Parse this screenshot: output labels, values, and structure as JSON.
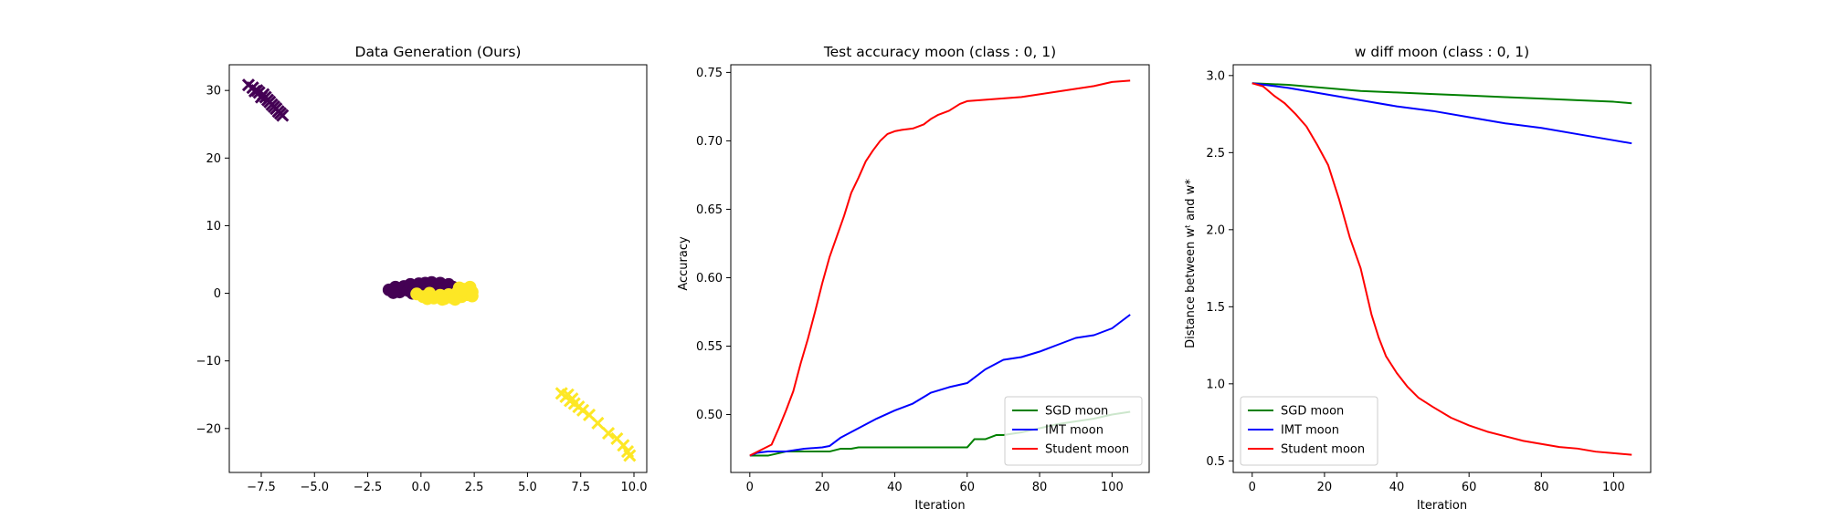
{
  "figure": {
    "background": "#ffffff"
  },
  "chart_data": [
    {
      "type": "scatter",
      "title": "Data Generation (Ours)",
      "xlabel": "",
      "ylabel": "",
      "xlim": [
        -9,
        10.6
      ],
      "ylim": [
        -26.5,
        33.8
      ],
      "xticks": [
        -7.5,
        -5.0,
        -2.5,
        0.0,
        2.5,
        5.0,
        7.5,
        10.0
      ],
      "xtick_labels": [
        "−7.5",
        "−5.0",
        "−2.5",
        "0.0",
        "2.5",
        "5.0",
        "7.5",
        "10.0"
      ],
      "yticks": [
        -20,
        -10,
        0,
        10,
        20,
        30
      ],
      "ytick_labels": [
        "−20",
        "−10",
        "0",
        "10",
        "20",
        "30"
      ],
      "grid": false,
      "series": [
        {
          "class": 0,
          "color": "#440154",
          "marker": "dot",
          "points": [
            [
              -1.5,
              0.5
            ],
            [
              -1.2,
              0.9
            ],
            [
              -1.0,
              0.2
            ],
            [
              -0.8,
              1.0
            ],
            [
              -0.6,
              0.4
            ],
            [
              -0.5,
              1.3
            ],
            [
              -0.3,
              0.7
            ],
            [
              -0.1,
              1.4
            ],
            [
              0.0,
              0.3
            ],
            [
              0.2,
              1.5
            ],
            [
              0.4,
              0.9
            ],
            [
              0.5,
              1.6
            ],
            [
              0.7,
              1.1
            ],
            [
              0.9,
              1.5
            ],
            [
              1.1,
              0.8
            ],
            [
              1.3,
              1.3
            ],
            [
              1.5,
              0.9
            ],
            [
              -1.3,
              0.1
            ],
            [
              -0.4,
              0.0
            ],
            [
              0.3,
              0.6
            ],
            [
              0.8,
              0.6
            ],
            [
              1.4,
              0.6
            ]
          ]
        },
        {
          "class": 0,
          "color": "#440154",
          "marker": "x",
          "points": [
            [
              -8.1,
              30.8
            ],
            [
              -7.9,
              30.4
            ],
            [
              -7.7,
              30.0
            ],
            [
              -7.6,
              29.7
            ],
            [
              -7.4,
              29.4
            ],
            [
              -7.3,
              29.0
            ],
            [
              -7.2,
              28.6
            ],
            [
              -7.1,
              28.3
            ],
            [
              -7.0,
              27.9
            ],
            [
              -6.9,
              27.6
            ],
            [
              -6.8,
              27.3
            ],
            [
              -6.7,
              26.9
            ],
            [
              -6.6,
              26.6
            ],
            [
              -6.5,
              26.3
            ],
            [
              -7.5,
              29.0
            ],
            [
              -7.8,
              29.9
            ]
          ]
        },
        {
          "class": 1,
          "color": "#fde725",
          "marker": "dot",
          "points": [
            [
              -0.2,
              -0.1
            ],
            [
              0.1,
              -0.5
            ],
            [
              0.4,
              0.0
            ],
            [
              0.6,
              -0.7
            ],
            [
              0.9,
              -0.3
            ],
            [
              1.1,
              -0.8
            ],
            [
              1.3,
              -0.2
            ],
            [
              1.5,
              -0.7
            ],
            [
              1.7,
              0.1
            ],
            [
              1.9,
              -0.5
            ],
            [
              2.0,
              0.6
            ],
            [
              2.2,
              -0.2
            ],
            [
              2.3,
              0.9
            ],
            [
              2.4,
              0.2
            ],
            [
              1.8,
              0.8
            ],
            [
              2.1,
              0.4
            ],
            [
              0.3,
              -0.8
            ],
            [
              1.0,
              -0.9
            ],
            [
              1.6,
              -0.9
            ],
            [
              2.4,
              -0.4
            ]
          ]
        },
        {
          "class": 1,
          "color": "#fde725",
          "marker": "x",
          "points": [
            [
              6.6,
              -14.8
            ],
            [
              6.8,
              -15.3
            ],
            [
              6.9,
              -15.0
            ],
            [
              7.0,
              -15.9
            ],
            [
              7.2,
              -16.3
            ],
            [
              7.4,
              -16.8
            ],
            [
              7.6,
              -17.3
            ],
            [
              7.9,
              -18.0
            ],
            [
              8.3,
              -19.2
            ],
            [
              8.8,
              -20.7
            ],
            [
              9.2,
              -21.5
            ],
            [
              9.5,
              -22.5
            ],
            [
              9.7,
              -23.4
            ],
            [
              9.8,
              -24.0
            ],
            [
              7.1,
              -15.6
            ]
          ]
        }
      ]
    },
    {
      "type": "line",
      "title": "Test accuracy moon (class : 0, 1)",
      "xlabel": "Iteration",
      "ylabel": "Accuracy",
      "xlim": [
        -5.25,
        110.25
      ],
      "ylim": [
        0.4577,
        0.7556
      ],
      "xticks": [
        0,
        20,
        40,
        60,
        80,
        100
      ],
      "xtick_labels": [
        "0",
        "20",
        "40",
        "60",
        "80",
        "100"
      ],
      "yticks": [
        0.5,
        0.55,
        0.6,
        0.65,
        0.7,
        0.75
      ],
      "ytick_labels": [
        "0.50",
        "0.55",
        "0.60",
        "0.65",
        "0.70",
        "0.75"
      ],
      "grid": false,
      "legend_position": "lower-right",
      "series": [
        {
          "name": "SGD moon",
          "color": "#008000",
          "x": [
            0,
            5,
            10,
            15,
            20,
            22,
            25,
            28,
            30,
            35,
            40,
            45,
            50,
            55,
            60,
            62,
            65,
            68,
            70,
            75,
            80,
            85,
            90,
            95,
            100,
            105
          ],
          "y": [
            0.47,
            0.47,
            0.473,
            0.473,
            0.473,
            0.473,
            0.475,
            0.475,
            0.476,
            0.476,
            0.476,
            0.476,
            0.476,
            0.476,
            0.476,
            0.482,
            0.482,
            0.485,
            0.485,
            0.487,
            0.49,
            0.493,
            0.495,
            0.497,
            0.5,
            0.502
          ]
        },
        {
          "name": "IMT moon",
          "color": "#0000ff",
          "x": [
            0,
            2,
            5,
            10,
            15,
            20,
            22,
            25,
            30,
            35,
            40,
            45,
            50,
            55,
            60,
            65,
            70,
            75,
            80,
            85,
            90,
            95,
            100,
            105
          ],
          "y": [
            0.47,
            0.472,
            0.473,
            0.473,
            0.475,
            0.476,
            0.477,
            0.483,
            0.49,
            0.497,
            0.503,
            0.508,
            0.516,
            0.52,
            0.523,
            0.533,
            0.54,
            0.542,
            0.546,
            0.551,
            0.556,
            0.558,
            0.563,
            0.573
          ]
        },
        {
          "name": "Student moon",
          "color": "#ff0000",
          "x": [
            0,
            3,
            6,
            8,
            10,
            12,
            14,
            16,
            18,
            20,
            22,
            24,
            26,
            28,
            30,
            32,
            34,
            36,
            38,
            40,
            42,
            45,
            48,
            50,
            52,
            55,
            58,
            60,
            65,
            70,
            75,
            80,
            85,
            90,
            95,
            100,
            105
          ],
          "y": [
            0.47,
            0.474,
            0.478,
            0.49,
            0.503,
            0.517,
            0.537,
            0.555,
            0.575,
            0.596,
            0.615,
            0.63,
            0.645,
            0.662,
            0.673,
            0.685,
            0.693,
            0.7,
            0.705,
            0.707,
            0.708,
            0.709,
            0.712,
            0.716,
            0.719,
            0.722,
            0.727,
            0.729,
            0.73,
            0.731,
            0.732,
            0.734,
            0.736,
            0.738,
            0.74,
            0.743,
            0.744
          ]
        }
      ]
    },
    {
      "type": "line",
      "title": "w diff moon (class : 0, 1)",
      "xlabel": "Iteration",
      "ylabel": "Distance between wᵗ and w*",
      "xlim": [
        -5.25,
        110.25
      ],
      "ylim": [
        0.425,
        3.07
      ],
      "xticks": [
        0,
        20,
        40,
        60,
        80,
        100
      ],
      "xtick_labels": [
        "0",
        "20",
        "40",
        "60",
        "80",
        "100"
      ],
      "yticks": [
        0.5,
        1.0,
        1.5,
        2.0,
        2.5,
        3.0
      ],
      "ytick_labels": [
        "0.5",
        "1.0",
        "1.5",
        "2.0",
        "2.5",
        "3.0"
      ],
      "grid": false,
      "legend_position": "lower-left",
      "series": [
        {
          "name": "SGD moon",
          "color": "#008000",
          "x": [
            0,
            10,
            20,
            30,
            40,
            50,
            60,
            70,
            80,
            90,
            100,
            105
          ],
          "y": [
            2.95,
            2.94,
            2.92,
            2.9,
            2.89,
            2.88,
            2.87,
            2.86,
            2.85,
            2.84,
            2.83,
            2.82
          ]
        },
        {
          "name": "IMT moon",
          "color": "#0000ff",
          "x": [
            0,
            10,
            20,
            30,
            40,
            50,
            60,
            70,
            80,
            90,
            100,
            105
          ],
          "y": [
            2.95,
            2.92,
            2.88,
            2.84,
            2.8,
            2.77,
            2.73,
            2.69,
            2.66,
            2.62,
            2.58,
            2.56
          ]
        },
        {
          "name": "Student moon",
          "color": "#ff0000",
          "x": [
            0,
            3,
            6,
            9,
            12,
            15,
            18,
            21,
            24,
            27,
            30,
            33,
            35,
            37,
            40,
            43,
            46,
            50,
            55,
            60,
            65,
            70,
            75,
            80,
            85,
            90,
            95,
            100,
            105
          ],
          "y": [
            2.95,
            2.93,
            2.87,
            2.82,
            2.75,
            2.67,
            2.55,
            2.42,
            2.2,
            1.95,
            1.75,
            1.45,
            1.3,
            1.18,
            1.07,
            0.98,
            0.91,
            0.85,
            0.78,
            0.73,
            0.69,
            0.66,
            0.63,
            0.61,
            0.59,
            0.58,
            0.56,
            0.55,
            0.54
          ]
        }
      ]
    }
  ]
}
